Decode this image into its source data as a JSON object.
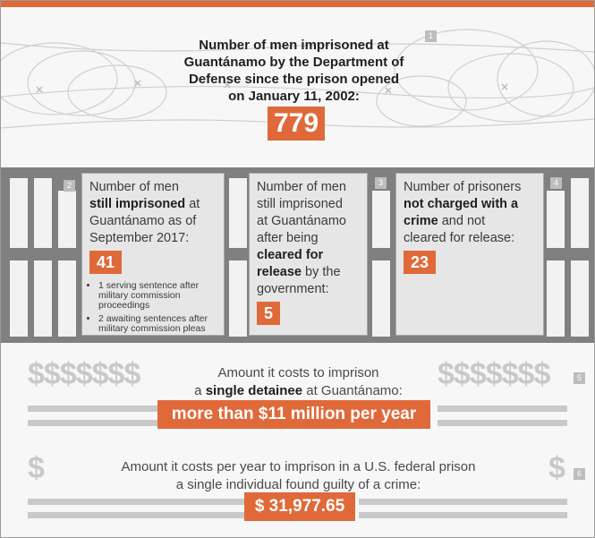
{
  "section1": {
    "number": "1",
    "title_lines": [
      "Number of men imprisoned at",
      "Guantánamo by the Department of",
      "Defense since the prison opened",
      "on January 11, 2002:"
    ],
    "value": "779"
  },
  "section2": {
    "number": "2",
    "text_pre": "Number of men",
    "text_bold": "still imprisoned",
    "text_post_1": " at",
    "text_post_2": "Guantánamo as of",
    "text_post_3": "September 2017:",
    "value": "41",
    "bullets": [
      "1 serving sentence after military commission proceedings",
      "2 awaiting sentences after military commission pleas"
    ]
  },
  "section3": {
    "number": "3",
    "lines": [
      "Number of men",
      "still imprisoned",
      "at Guantánamo",
      "after being"
    ],
    "bold_1": "cleared for",
    "bold_2": "release",
    "post_bold": " by the",
    "last_line": "government:",
    "value": "5"
  },
  "section4": {
    "number": "4",
    "line_1": "Number of prisoners",
    "bold_1": "not charged with a",
    "bold_2": "crime",
    "post_bold": " and not",
    "line_4": "cleared for release:",
    "value": "23"
  },
  "section5": {
    "number": "5",
    "dollar_signs": "$$$$$$$",
    "line_1": "Amount it costs to imprison",
    "line_2_pre": "a ",
    "line_2_bold": "single detainee",
    "line_2_post": " at Guantánamo:",
    "value": "more than $11 million per year"
  },
  "section6": {
    "number": "6",
    "dollar_sign": "$",
    "line_1": "Amount it costs per year to imprison in a U.S. federal prison",
    "line_2": "a single individual found guilty of a crime:",
    "value": "$ 31,977.65"
  },
  "colors": {
    "accent": "#e0693a",
    "bars": "#808080",
    "dollar": "#c9c9c9"
  }
}
